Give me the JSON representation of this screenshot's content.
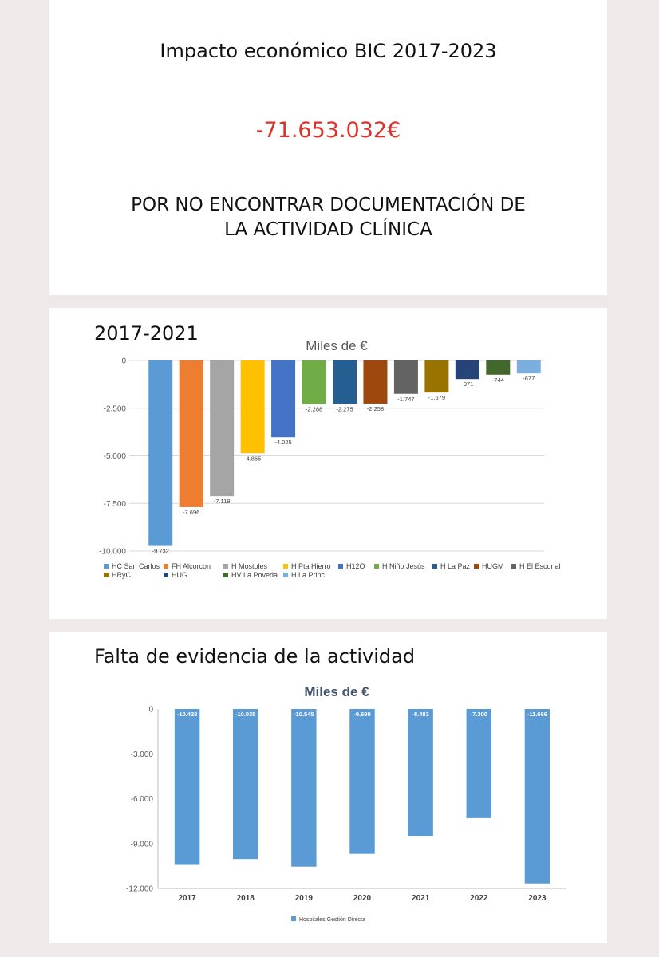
{
  "summary": {
    "title": "Impacto económico BIC 2017-2023",
    "amount": "-71.653.032€",
    "message_line1": "POR NO ENCONTRAR DOCUMENTACIÓN DE",
    "message_line2": "LA ACTIVIDAD CLÍNICA"
  },
  "section1": {
    "heading": "2017-2021"
  },
  "section2": {
    "heading": "Falta de evidencia de la actividad"
  },
  "colors": {
    "amount": "#e0302a",
    "background": "#efe9ea",
    "chart2_bar": "#5b9bd5"
  },
  "chart_data": [
    {
      "type": "bar",
      "title": "Miles de €",
      "categories": [
        "HC San Carlos",
        "FH Alcorcon",
        "H Mostoles",
        "H Pta Hierro",
        "H12O",
        "H Niño Jesús",
        "H La Paz",
        "HUGM",
        "H El Escorial",
        "HRyC",
        "HUG",
        "HV La Poveda",
        "H La Princ"
      ],
      "values": [
        -9732,
        -7696,
        -7119,
        -4865,
        -4025,
        -2288,
        -2275,
        -2258,
        -1747,
        -1679,
        -971,
        -744,
        -677
      ],
      "value_labels": [
        "-9.732",
        "-7.696",
        "-7.119",
        "-4.865",
        "-4.025",
        "-2.288",
        "-2.275",
        "-2.258",
        "-1.747",
        "-1.679",
        "-971",
        "-744",
        "-677"
      ],
      "colors": [
        "#5b9bd5",
        "#ed7d31",
        "#a5a5a5",
        "#ffc000",
        "#4472c4",
        "#70ad47",
        "#255e91",
        "#9e480e",
        "#636363",
        "#997300",
        "#264478",
        "#43682b",
        "#7cafdd"
      ],
      "ylim": [
        -10000,
        0
      ],
      "yticks": [
        "0",
        "-2.500",
        "-5.000",
        "-7.500",
        "-10.000"
      ],
      "ytick_values": [
        0,
        -2500,
        -5000,
        -7500,
        -10000
      ],
      "grid": true,
      "legend_position": "bottom"
    },
    {
      "type": "bar",
      "title": "Miles de €",
      "categories": [
        "2017",
        "2018",
        "2019",
        "2020",
        "2021",
        "2022",
        "2023"
      ],
      "series": [
        {
          "name": "Hospitales Gestión Directa",
          "values": [
            -10428,
            -10035,
            -10545,
            -9690,
            -8483,
            -7300,
            -11666
          ]
        }
      ],
      "value_labels": [
        "-10.428",
        "-10.035",
        "-10.545",
        "-9.690",
        "-8.483",
        "-7.300",
        "-11.666"
      ],
      "ylim": [
        -12000,
        0
      ],
      "yticks": [
        "0",
        "-3.000",
        "-6.000",
        "-9.000",
        "-12.000"
      ],
      "ytick_values": [
        0,
        -3000,
        -6000,
        -9000,
        -12000
      ],
      "grid": false,
      "legend_position": "bottom"
    }
  ]
}
